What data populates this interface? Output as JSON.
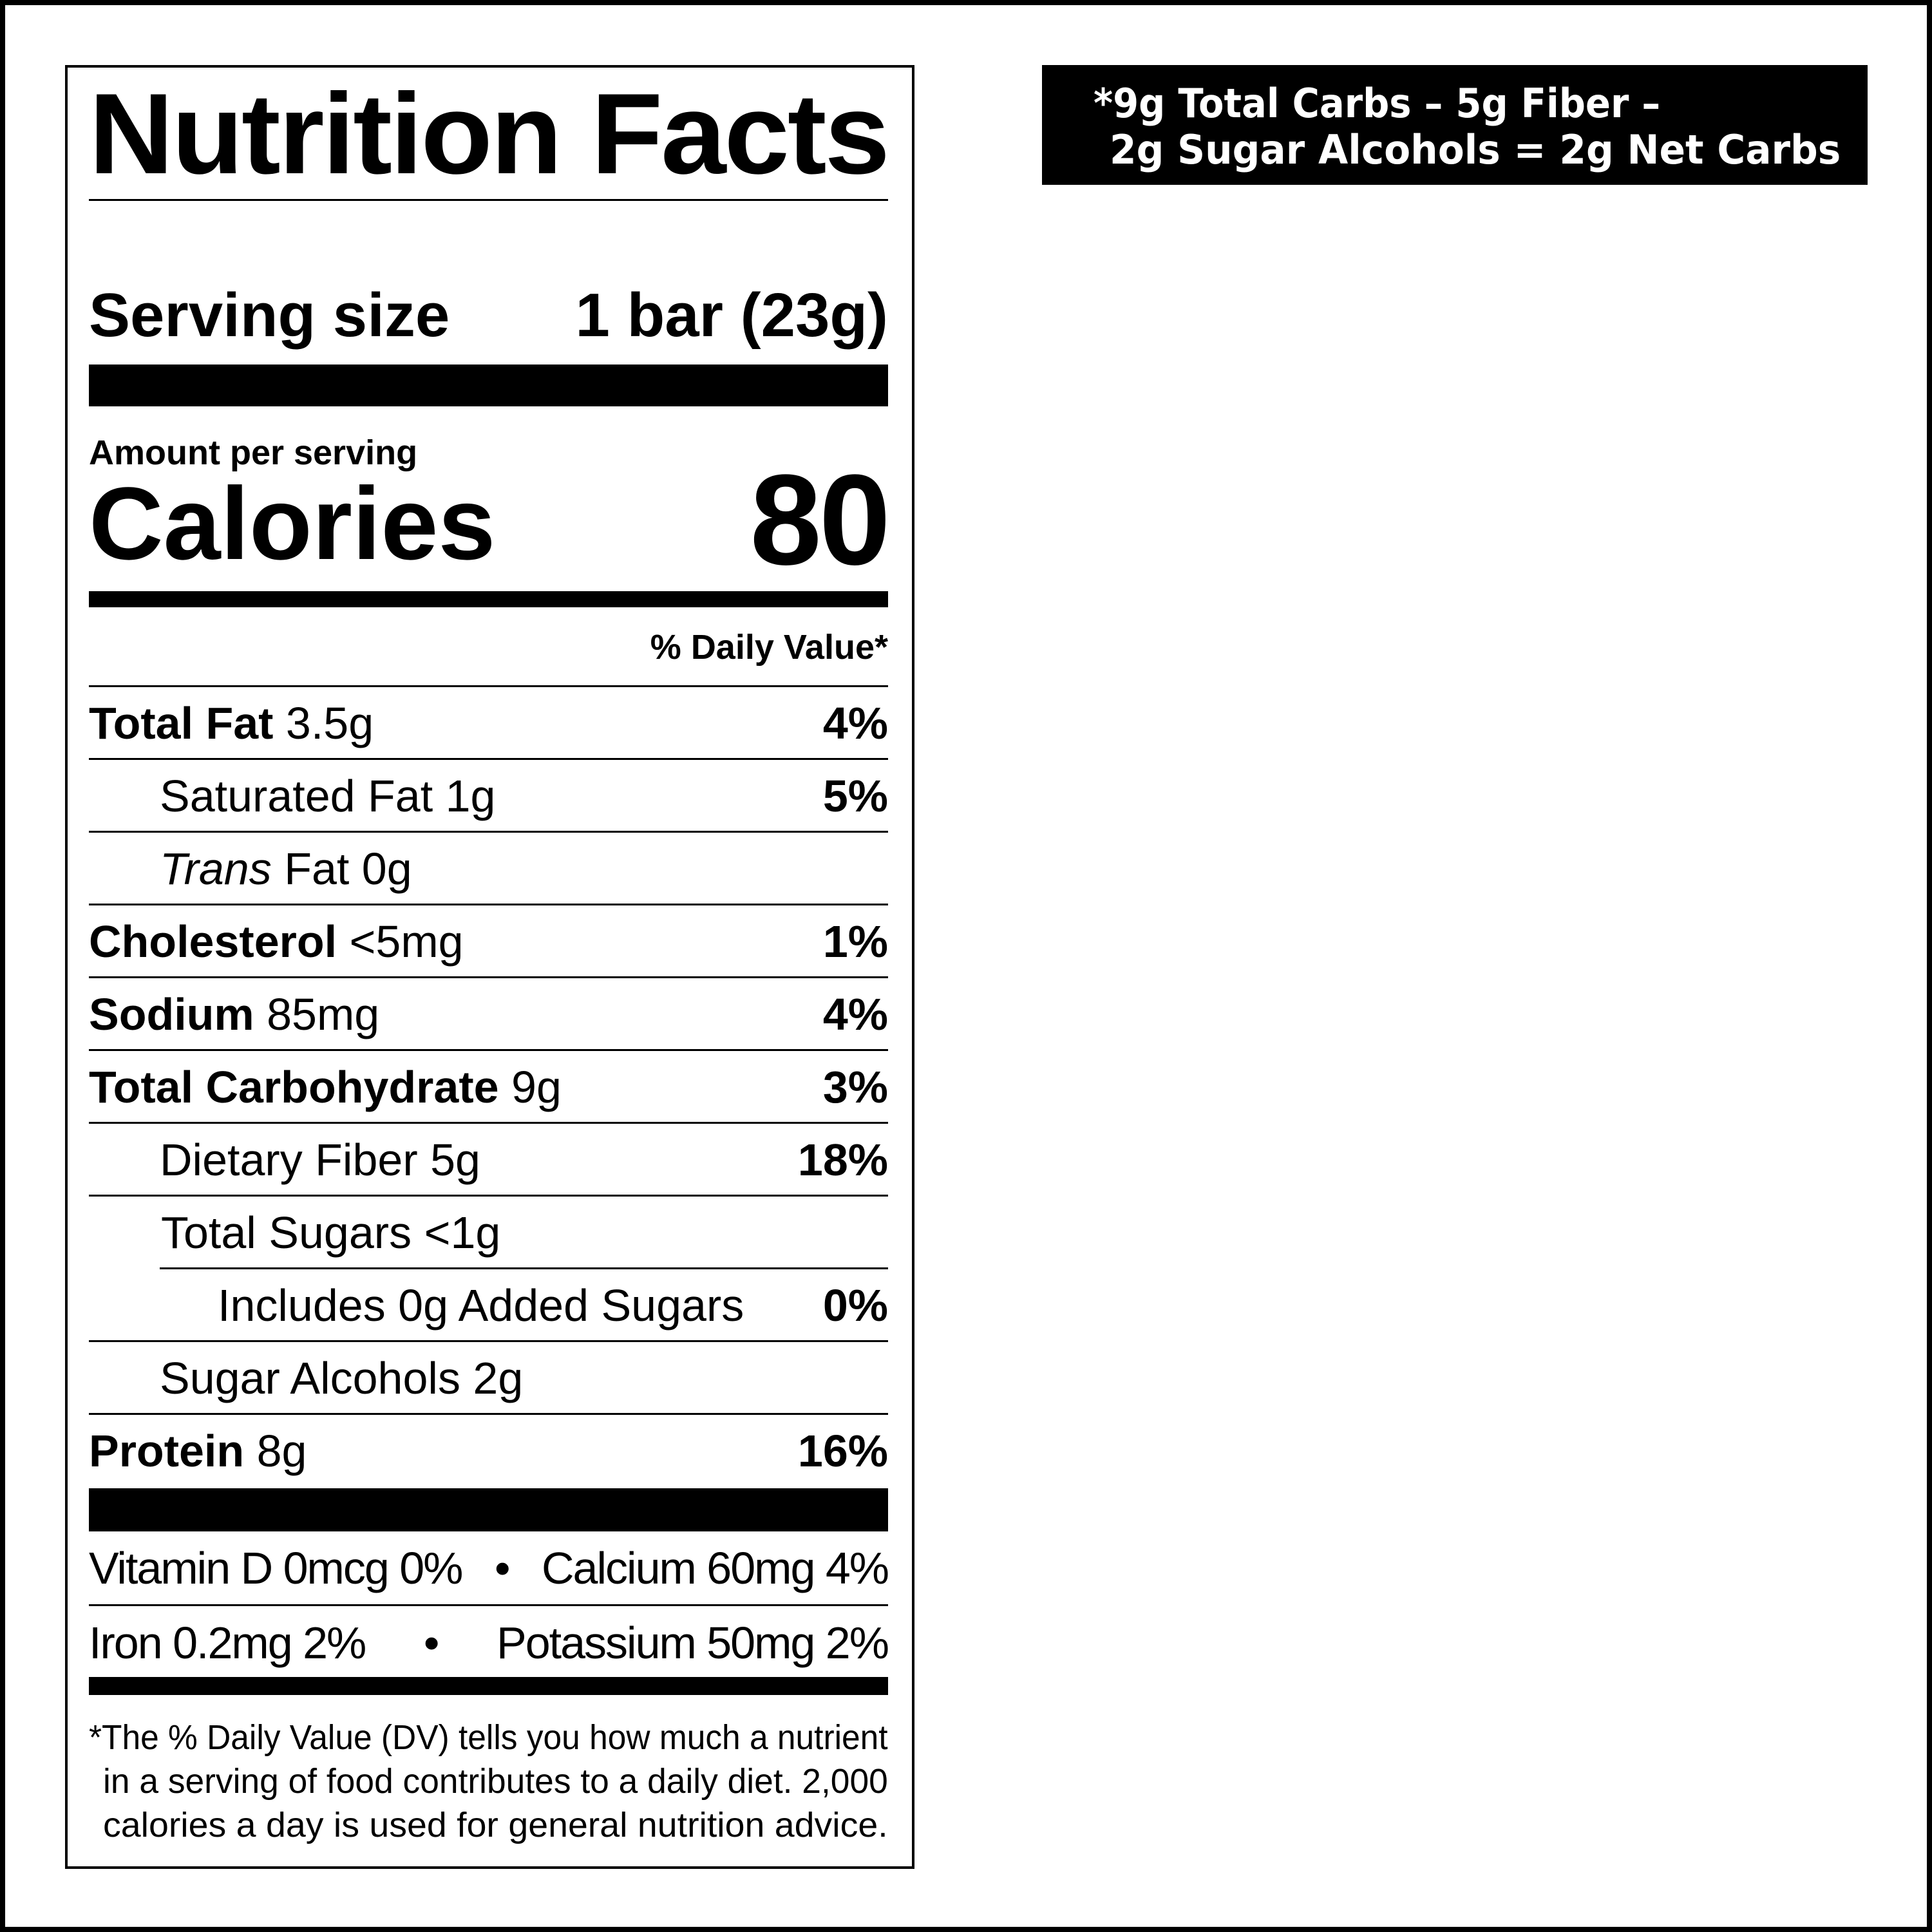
{
  "label": {
    "title": "Nutrition Facts",
    "serving_size_label": "Serving size",
    "serving_size_value": "1 bar (23g)",
    "amount_per_serving": "Amount per serving",
    "calories_label": "Calories",
    "calories_value": "80",
    "daily_value_header": "% Daily Value*",
    "nutrients": [
      {
        "name": "Total Fat",
        "amount": "3.5g",
        "dv": "4%",
        "bold": true
      },
      {
        "name": "Saturated Fat",
        "amount": "1g",
        "dv": "5%",
        "bold": false
      },
      {
        "name": "Trans",
        "name_suffix": "Fat",
        "amount": "0g",
        "dv": "",
        "bold": false
      },
      {
        "name": "Cholesterol",
        "amount": "<5mg",
        "dv": "1%",
        "bold": true
      },
      {
        "name": "Sodium",
        "amount": "85mg",
        "dv": "4%",
        "bold": true
      },
      {
        "name": "Total Carbohydrate",
        "amount": "9g",
        "dv": "3%",
        "bold": true
      },
      {
        "name": "Dietary Fiber",
        "amount": "5g",
        "dv": "18%",
        "bold": false
      },
      {
        "name": "Total Sugars",
        "amount": "<1g",
        "dv": "",
        "bold": false
      },
      {
        "name": "Includes 0g Added Sugars",
        "amount": "",
        "dv": "0%",
        "bold": false
      },
      {
        "name": "Sugar Alcohols",
        "amount": "2g",
        "dv": "",
        "bold": false
      },
      {
        "name": "Protein",
        "amount": "8g",
        "dv": "16%",
        "bold": true
      }
    ],
    "vitamins": [
      [
        "Vitamin D 0mcg 0%",
        "•",
        "Calcium 60mg 4%"
      ],
      [
        "Iron 0.2mg 2%",
        "•",
        "Potassium 50mg 2%"
      ]
    ],
    "footnote": [
      "*The % Daily Value (DV) tells you how much a nutrient",
      "in a serving of food contributes to a daily diet. 2,000",
      "calories a day is used for general nutrition advice."
    ]
  },
  "net_carbs_note": {
    "line1": "*9g Total Carbs – 5g Fiber –",
    "line2": "2g Sugar Alcohols = 2g Net Carbs"
  },
  "colors": {
    "text": "#000000",
    "background": "#ffffff",
    "note_background": "#000000",
    "note_text": "#ffffff"
  }
}
